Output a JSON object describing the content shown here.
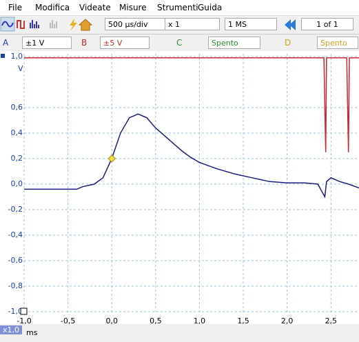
{
  "menu": [
    "File",
    "Modifica",
    "Videate",
    "Misure",
    "Strumenti",
    "Guida"
  ],
  "toolbar": {
    "timebase": "500 µs/div",
    "zoom": "x 1",
    "samples": "1 MS",
    "buffer": "1 of 1"
  },
  "channels": [
    {
      "label": "A",
      "range": "±1 V"
    },
    {
      "label": "B",
      "range": "±5 V"
    },
    {
      "label": "C",
      "range": "Spento"
    },
    {
      "label": "D",
      "range": "Spento"
    }
  ],
  "chart_data": {
    "type": "line",
    "y_unit": "V",
    "x_unit": "ms",
    "zoom_badge": "x1,0",
    "grid": true,
    "xlim": [
      -1.0,
      2.82
    ],
    "ylim": [
      -1.0,
      1.0
    ],
    "xticks": [
      {
        "value": -1.0,
        "label": "-1,0"
      },
      {
        "value": -0.5,
        "label": "-0,5"
      },
      {
        "value": 0.0,
        "label": "0,0"
      },
      {
        "value": 0.5,
        "label": "0,5"
      },
      {
        "value": 1.0,
        "label": "1,0"
      },
      {
        "value": 1.5,
        "label": "1,5"
      },
      {
        "value": 2.0,
        "label": "2,0"
      },
      {
        "value": 2.5,
        "label": "2,5"
      }
    ],
    "yticks": [
      {
        "value": -1.0,
        "label": "-1,0"
      },
      {
        "value": -0.8,
        "label": "-0,8"
      },
      {
        "value": -0.6,
        "label": "-0,6"
      },
      {
        "value": -0.4,
        "label": "-0,4"
      },
      {
        "value": -0.2,
        "label": "-0,2"
      },
      {
        "value": 0.0,
        "label": "0,0"
      },
      {
        "value": 0.2,
        "label": "0,2"
      },
      {
        "value": 0.4,
        "label": "0,4"
      },
      {
        "value": 0.6,
        "label": "0,6"
      },
      {
        "value": 1.0,
        "label": "1,0"
      }
    ],
    "series": [
      {
        "color": "#1a1a80",
        "x": [
          -1.0,
          -0.4,
          -0.33,
          -0.2,
          -0.1,
          0.0,
          0.1,
          0.2,
          0.3,
          0.4,
          0.5,
          0.6,
          0.7,
          0.8,
          0.9,
          1.0,
          1.2,
          1.4,
          1.6,
          1.8,
          2.0,
          2.2,
          2.35,
          2.43,
          2.45,
          2.5,
          2.6,
          2.7,
          2.82
        ],
        "values": [
          -0.04,
          -0.04,
          -0.02,
          0.0,
          0.05,
          0.2,
          0.4,
          0.52,
          0.55,
          0.52,
          0.44,
          0.38,
          0.32,
          0.26,
          0.21,
          0.17,
          0.12,
          0.08,
          0.05,
          0.02,
          0.01,
          0.01,
          0.0,
          -0.1,
          0.02,
          0.05,
          0.02,
          0.0,
          -0.03
        ]
      },
      {
        "color": "#cc2233",
        "x": [
          -1.0,
          2.42,
          2.44,
          2.45,
          2.68,
          2.7,
          2.71,
          2.82
        ],
        "values": [
          0.99,
          0.99,
          0.25,
          0.99,
          0.99,
          0.25,
          0.99,
          0.99
        ]
      }
    ],
    "trigger": {
      "x": 0.0,
      "y": 0.2,
      "color": "#f0e040"
    }
  }
}
